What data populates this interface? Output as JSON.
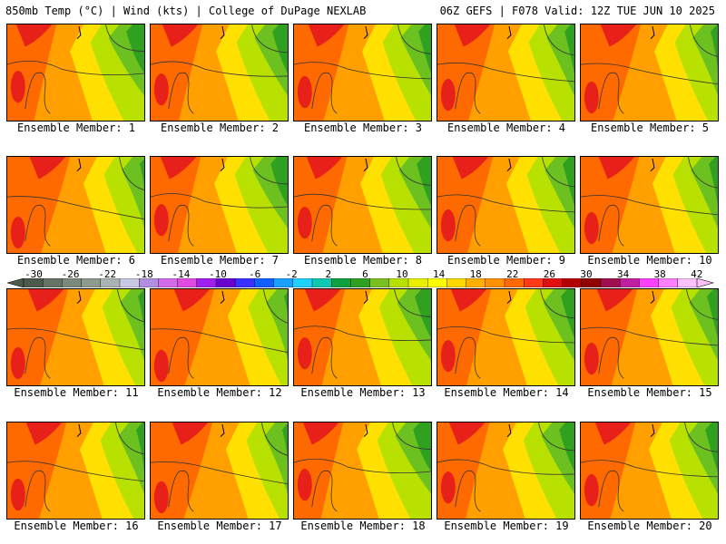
{
  "header": {
    "left": "850mb Temp (°C) | Wind (kts) | College of DuPage NEXLAB",
    "right": "06Z GEFS | F078 Valid: 12Z TUE JUN 10 2025"
  },
  "colorbar": {
    "tick_labels": [
      "-30",
      "-26",
      "-22",
      "-18",
      "-14",
      "-10",
      "-6",
      "-2",
      "2",
      "6",
      "10",
      "14",
      "18",
      "22",
      "26",
      "30",
      "34",
      "38",
      "42"
    ],
    "colors": [
      "#4b5a4b",
      "#647364",
      "#7a897a",
      "#8f9a8f",
      "#a9b3b3",
      "#c9c9e6",
      "#b08fe0",
      "#d36be8",
      "#e04be0",
      "#a020f0",
      "#6a00d0",
      "#3a30ff",
      "#1060ff",
      "#1aa0ff",
      "#20d0ff",
      "#10c8b0",
      "#10a040",
      "#30a020",
      "#7ac020",
      "#b8e000",
      "#e8f000",
      "#ffff00",
      "#ffd800",
      "#ffb000",
      "#ff9000",
      "#ff6a00",
      "#ff3a1a",
      "#e01010",
      "#b00000",
      "#900000",
      "#a01050",
      "#c020a0",
      "#ff40ff",
      "#ff80ff",
      "#ffc0ff"
    ]
  },
  "members": [
    "Ensemble Member: 1",
    "Ensemble Member: 2",
    "Ensemble Member: 3",
    "Ensemble Member: 4",
    "Ensemble Member: 5",
    "Ensemble Member: 6",
    "Ensemble Member: 7",
    "Ensemble Member: 8",
    "Ensemble Member: 9",
    "Ensemble Member: 10",
    "Ensemble Member: 11",
    "Ensemble Member: 12",
    "Ensemble Member: 13",
    "Ensemble Member: 14",
    "Ensemble Member: 15",
    "Ensemble Member: 16",
    "Ensemble Member: 17",
    "Ensemble Member: 18",
    "Ensemble Member: 19",
    "Ensemble Member: 20"
  ],
  "palette": {
    "hot": "#e8201a",
    "warm": "#ff6a00",
    "orange": "#ffa000",
    "yellow": "#ffe000",
    "lime": "#b8e000",
    "green": "#6cc020",
    "dark_green": "#30a020",
    "contour": "#333333"
  }
}
